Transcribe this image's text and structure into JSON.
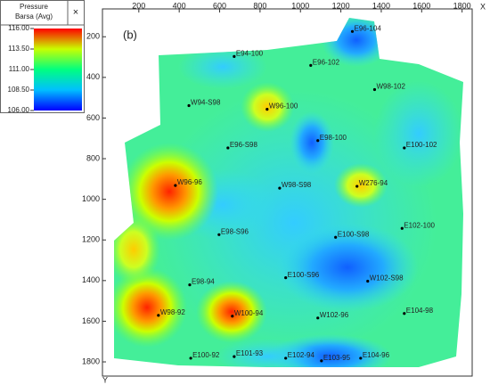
{
  "chart_data": {
    "type": "contour-map",
    "annotation": "(b)",
    "x_axis_label": "X",
    "y_axis_label": "Y",
    "xlim": [
      20,
      1850
    ],
    "ylim": [
      63,
      1870
    ],
    "y_inverted": true,
    "xticks": [
      200,
      400,
      600,
      800,
      1000,
      1200,
      1400,
      1600,
      1800
    ],
    "yticks": [
      200,
      400,
      600,
      800,
      1000,
      1200,
      1400,
      1600,
      1800
    ],
    "colorbar": {
      "title": [
        "Pressure",
        "Barsa (Avg)"
      ],
      "close": "×",
      "lim": [
        106,
        116
      ],
      "colors": [
        "#0000ff",
        "#00bfff",
        "#00ff80",
        "#c8ff00",
        "#ff0000"
      ],
      "ticks": [
        {
          "value": 116,
          "label": "116.00"
        },
        {
          "value": 113.5,
          "label": "113.50"
        },
        {
          "value": 111,
          "label": "111.00"
        },
        {
          "value": 108.5,
          "label": "108.50"
        },
        {
          "value": 106,
          "label": "106.00"
        }
      ]
    },
    "wells": [
      {
        "name": "E96-104",
        "x": 1257,
        "y": 174
      },
      {
        "name": "E94-100",
        "x": 672,
        "y": 297
      },
      {
        "name": "E96-102",
        "x": 1051,
        "y": 341
      },
      {
        "name": "W98-102",
        "x": 1367,
        "y": 460
      },
      {
        "name": "W94-S98",
        "x": 448,
        "y": 539
      },
      {
        "name": "W96-100",
        "x": 835,
        "y": 557
      },
      {
        "name": "E98-100",
        "x": 1086,
        "y": 711
      },
      {
        "name": "E96-S98",
        "x": 641,
        "y": 747
      },
      {
        "name": "E100-102",
        "x": 1514,
        "y": 747
      },
      {
        "name": "W96-96",
        "x": 381,
        "y": 932
      },
      {
        "name": "W98-S98",
        "x": 897,
        "y": 945
      },
      {
        "name": "W276-94",
        "x": 1280,
        "y": 936
      },
      {
        "name": "E98-S96",
        "x": 597,
        "y": 1174
      },
      {
        "name": "E100-S98",
        "x": 1174,
        "y": 1187
      },
      {
        "name": "E102-100",
        "x": 1503,
        "y": 1143
      },
      {
        "name": "E98-94",
        "x": 452,
        "y": 1421
      },
      {
        "name": "E100-S96",
        "x": 927,
        "y": 1386
      },
      {
        "name": "W102-S98",
        "x": 1333,
        "y": 1403
      },
      {
        "name": "W98-92",
        "x": 297,
        "y": 1571
      },
      {
        "name": "W100-94",
        "x": 663,
        "y": 1575
      },
      {
        "name": "W102-96",
        "x": 1086,
        "y": 1584
      },
      {
        "name": "E104-98",
        "x": 1514,
        "y": 1562
      },
      {
        "name": "E100-92",
        "x": 457,
        "y": 1782
      },
      {
        "name": "E101-93",
        "x": 672,
        "y": 1774
      },
      {
        "name": "E102-94",
        "x": 927,
        "y": 1782
      },
      {
        "name": "E103-95",
        "x": 1104,
        "y": 1795
      },
      {
        "name": "E104-96",
        "x": 1298,
        "y": 1782
      }
    ]
  }
}
